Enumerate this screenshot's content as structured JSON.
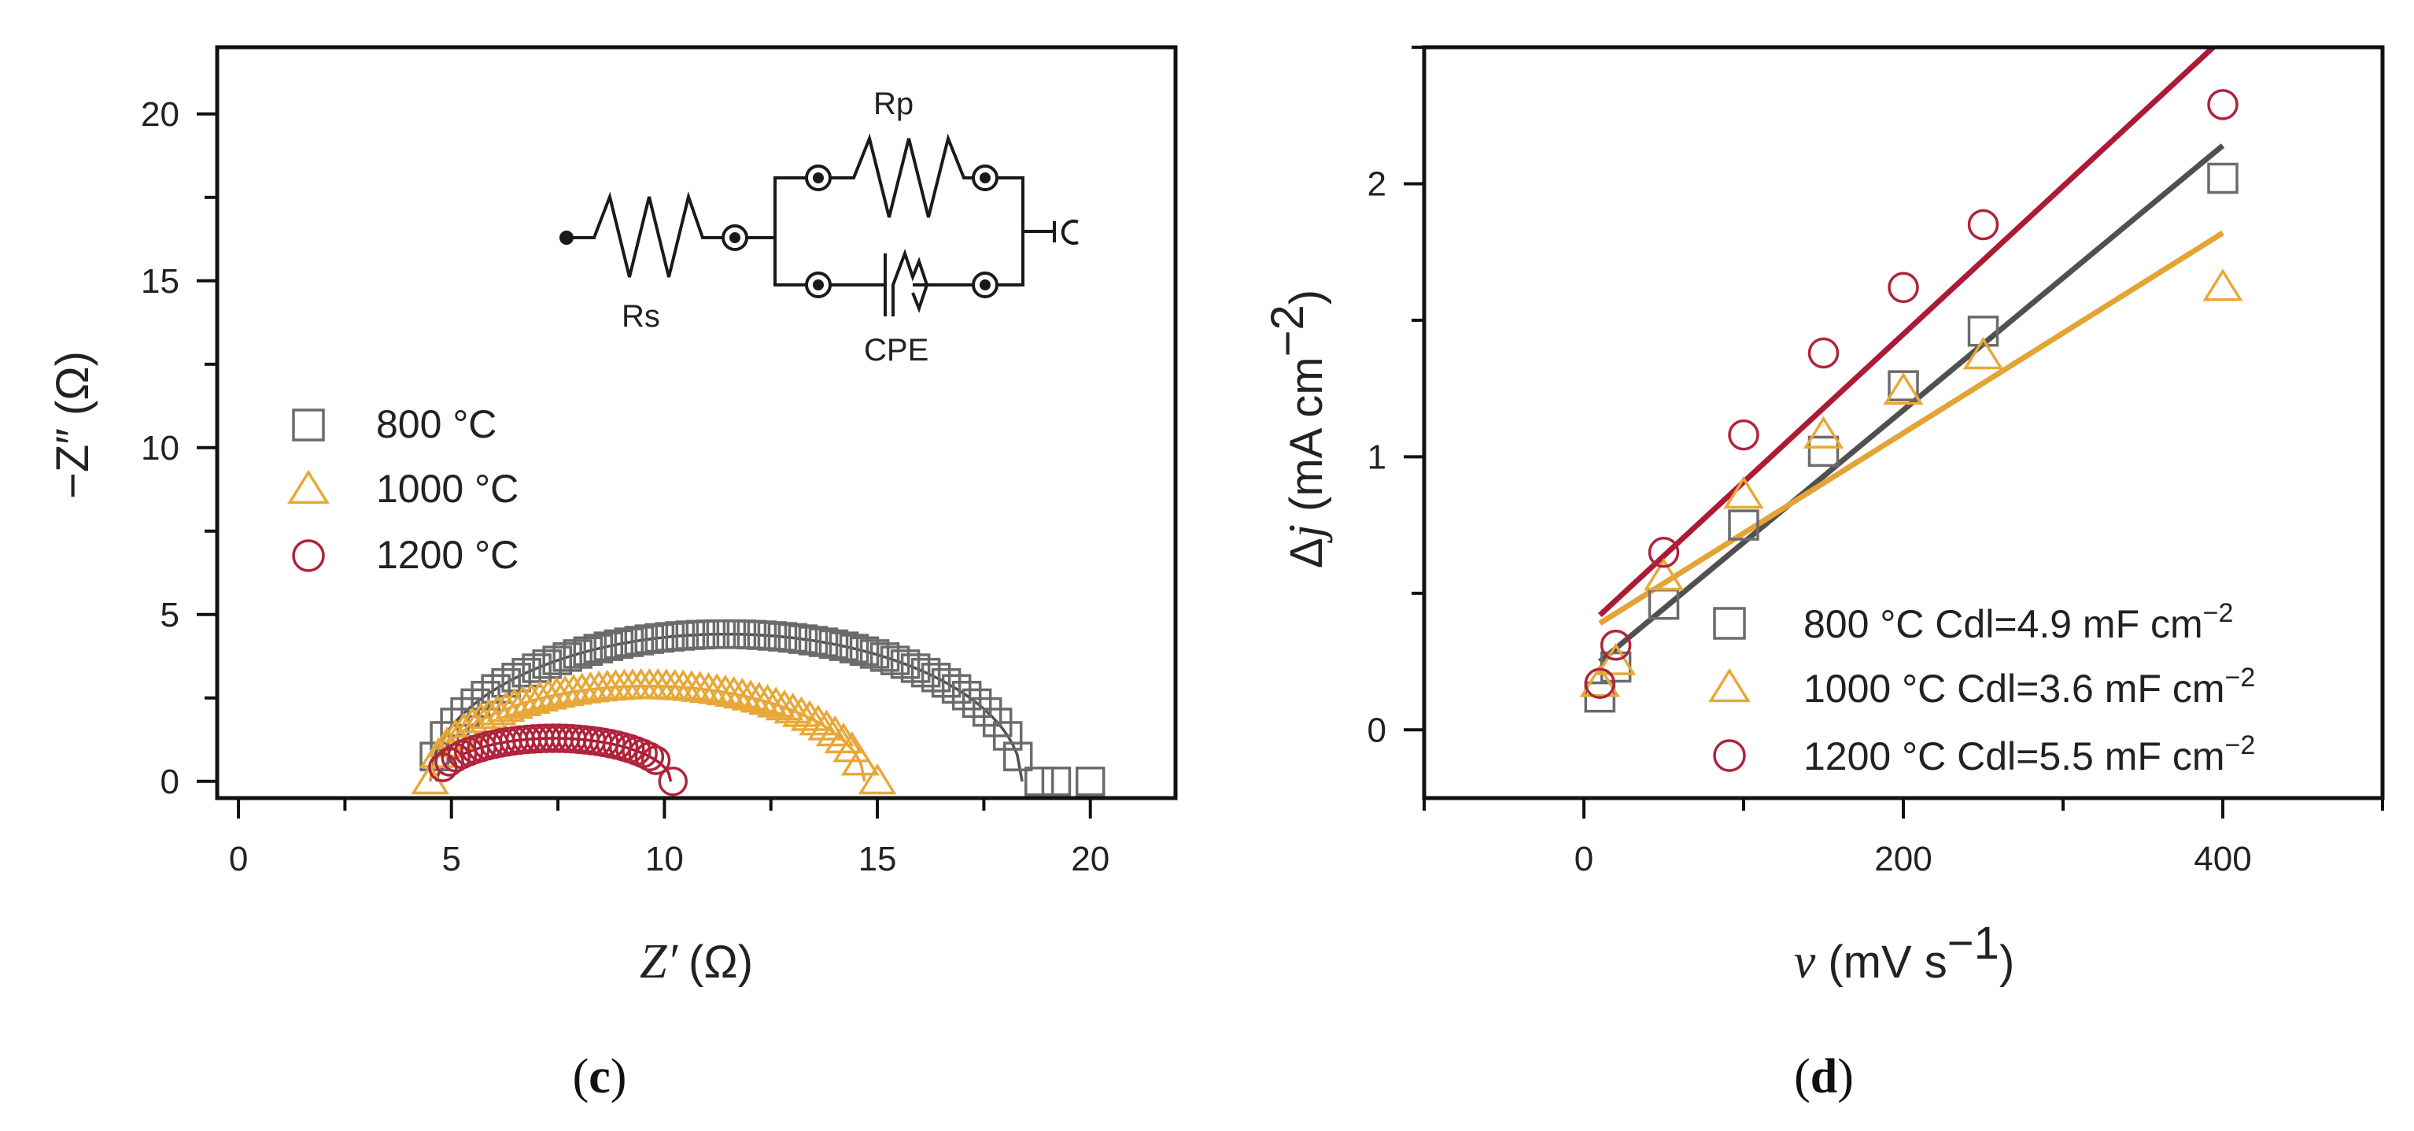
{
  "colors": {
    "s800": "#6b6b6b",
    "s1000": "#e8a838",
    "s1200": "#b0233c",
    "fit800": "#505050",
    "fit1000": "#e3a436",
    "fit1200": "#ad1a36",
    "axis": "#111111"
  },
  "chart_data": [
    {
      "panel": "c",
      "type": "scatter",
      "caption": {
        "open": "(",
        "letter": "c",
        "close": ")"
      },
      "xlabel": {
        "var": "Z′",
        "unit": "(Ω)"
      },
      "ylabel": "−Z″ (Ω)",
      "xlim": [
        -0.5,
        22
      ],
      "ylim": [
        -0.5,
        22
      ],
      "xticks": [
        0,
        5,
        10,
        15,
        20
      ],
      "yticks": [
        0,
        5,
        10,
        15,
        20
      ],
      "legend_position": "middle-left",
      "circuit": {
        "rs": "Rs",
        "rp": "Rp",
        "cpe": "CPE"
      },
      "series": [
        {
          "name": "800 °C",
          "marker": "square",
          "color_key": "s800",
          "fit_key": "fit800",
          "center": 11.45,
          "radius": 6.95,
          "yscale": 0.635,
          "z_start": 4.6,
          "z_end": 18.3,
          "n": 58,
          "tail": [
            [
              18.8,
              0
            ],
            [
              19.2,
              0
            ],
            [
              20.0,
              0
            ]
          ]
        },
        {
          "name": "1000 °C",
          "marker": "triangle",
          "color_key": "s1000",
          "fit_key": "fit1000",
          "center": 9.6,
          "radius": 5.1,
          "yscale": 0.56,
          "z_start": 4.5,
          "z_end": 14.6,
          "n": 52,
          "tail": [
            [
              15.0,
              0
            ]
          ]
        },
        {
          "name": "1200 °C",
          "marker": "circle",
          "color_key": "s1200",
          "fit_key": "fit1200",
          "center": 7.4,
          "radius": 2.75,
          "yscale": 0.47,
          "z_start": 4.8,
          "z_end": 9.8,
          "n": 34,
          "tail": [
            [
              10.2,
              0
            ]
          ]
        }
      ]
    },
    {
      "panel": "d",
      "type": "scatter",
      "caption": {
        "open": "(",
        "letter": "d",
        "close": ")"
      },
      "xlabel": {
        "var": "ν",
        "unit": " (mV s",
        "sup": "−1",
        "close": ")"
      },
      "ylabel": {
        "prefix": "Δ",
        "var": "j",
        "unit": " (mA  cm",
        "sup": "−2",
        "close": ")"
      },
      "xlim": [
        -100,
        500
      ],
      "ylim": [
        -0.25,
        2.5
      ],
      "xticks": [
        0,
        200,
        400
      ],
      "yticks": [
        0,
        1,
        2
      ],
      "legend_position": "bottom-right",
      "series": [
        {
          "name": "800 °C",
          "legend": " 800 °C  Cdl=4.9 mF cm",
          "sup": "−2",
          "marker": "square",
          "color_key": "s800",
          "fit_key": "fit800",
          "x": [
            10,
            20,
            50,
            100,
            150,
            200,
            250,
            400
          ],
          "y": [
            0.12,
            0.23,
            0.46,
            0.75,
            1.02,
            1.26,
            1.46,
            2.02
          ],
          "fit": {
            "x": [
              10,
              400
            ],
            "y": [
              0.25,
              2.14
            ]
          }
        },
        {
          "name": "1000 °C",
          "legend": "1000 °C Cdl=3.6 mF cm",
          "sup": "−2",
          "marker": "triangle",
          "color_key": "s1000",
          "fit_key": "fit1000",
          "x": [
            10,
            20,
            50,
            100,
            150,
            200,
            250,
            400
          ],
          "y": [
            0.17,
            0.25,
            0.56,
            0.86,
            1.08,
            1.24,
            1.37,
            1.62
          ],
          "fit": {
            "x": [
              10,
              400
            ],
            "y": [
              0.39,
              1.82
            ]
          }
        },
        {
          "name": "1200 °C",
          "legend": "1200 °C Cdl=5.5 mF cm",
          "sup": "−2",
          "marker": "circle",
          "color_key": "s1200",
          "fit_key": "fit1200",
          "x": [
            10,
            20,
            50,
            100,
            150,
            200,
            250,
            400
          ],
          "y": [
            0.17,
            0.31,
            0.65,
            1.08,
            1.38,
            1.62,
            1.85,
            2.29
          ],
          "fit": {
            "x": [
              10,
              394
            ],
            "y": [
              0.42,
              2.5
            ]
          }
        }
      ]
    }
  ]
}
